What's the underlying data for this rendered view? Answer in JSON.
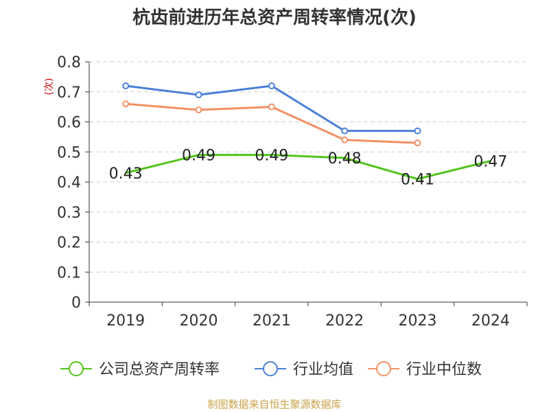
{
  "chart_data": {
    "type": "line",
    "title": "杭齿前进历年总资产周转率情况(次)",
    "ylabel": "(次)",
    "ylim": [
      0,
      0.8
    ],
    "yticks": [
      "0",
      "0.1",
      "0.2",
      "0.3",
      "0.4",
      "0.5",
      "0.6",
      "0.7",
      "0.8"
    ],
    "categories": [
      "2019",
      "2020",
      "2021",
      "2022",
      "2023",
      "2024"
    ],
    "grid": true,
    "legend": "bottom",
    "series": [
      {
        "name": "公司总资产周转率",
        "color": "#52c41a",
        "values": [
          0.43,
          0.49,
          0.49,
          0.48,
          0.41,
          0.47
        ],
        "labels": [
          "0.43",
          "0.49",
          "0.49",
          "0.48",
          "0.41",
          "0.47"
        ],
        "markers": false
      },
      {
        "name": "行业均值",
        "color": "#4a7fd8",
        "values": [
          0.72,
          0.69,
          0.72,
          0.57,
          0.57,
          null
        ],
        "markers": true
      },
      {
        "name": "行业中位数",
        "color": "#f39063",
        "values": [
          0.66,
          0.64,
          0.65,
          0.54,
          0.53,
          null
        ],
        "markers": true
      }
    ]
  },
  "source": "制图数据来自恒生聚源数据库"
}
